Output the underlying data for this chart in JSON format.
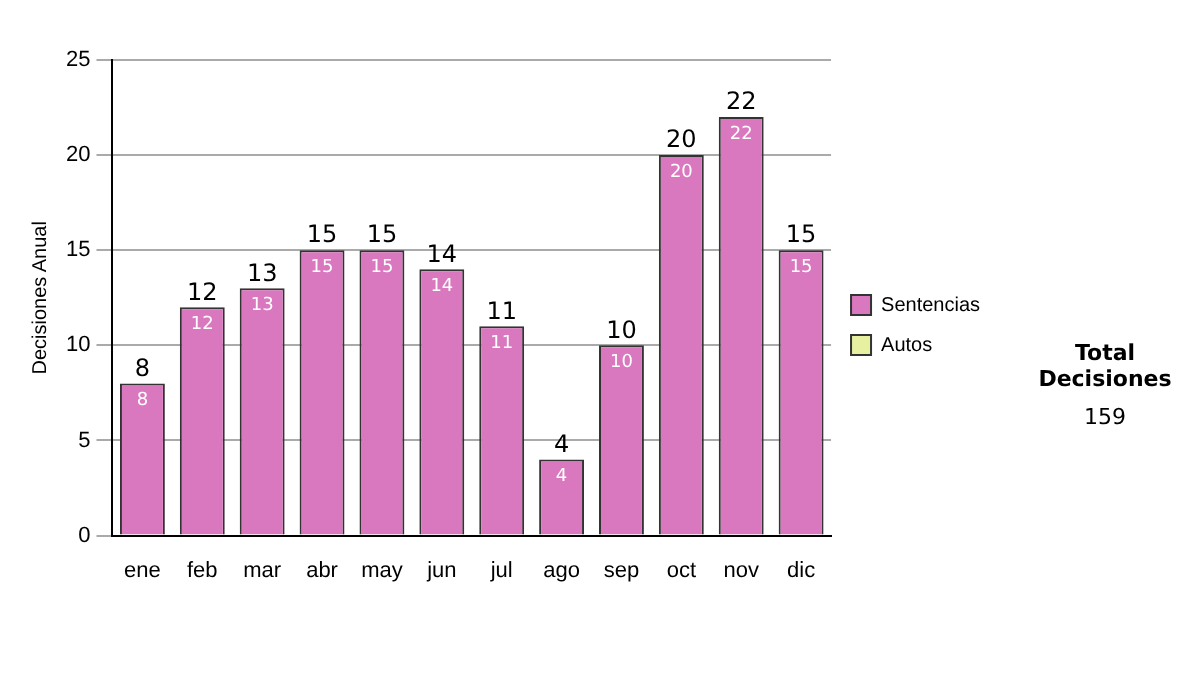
{
  "chart_data": {
    "type": "bar",
    "ylabel": "Decisiones Anual",
    "categories": [
      "ene",
      "feb",
      "mar",
      "abr",
      "may",
      "jun",
      "jul",
      "ago",
      "sep",
      "oct",
      "nov",
      "dic"
    ],
    "series": [
      {
        "name": "Sentencias",
        "color": "#d978bf",
        "values": [
          8,
          12,
          13,
          15,
          15,
          14,
          11,
          4,
          10,
          20,
          22,
          15
        ],
        "value_labels": [
          "8",
          "12",
          "13",
          "15",
          "15",
          "14",
          "11",
          "4",
          "10",
          "20",
          "22",
          "15"
        ]
      },
      {
        "name": "Autos",
        "color": "#e6f0a0",
        "values": [
          0,
          0,
          0,
          0,
          0,
          0,
          0,
          0,
          0,
          0,
          0,
          0
        ]
      }
    ],
    "stacked": true,
    "totals": [
      "8",
      "12",
      "13",
      "15",
      "15",
      "14",
      "11",
      "4",
      "10",
      "20",
      "22",
      "15"
    ],
    "ylim": [
      0,
      25
    ],
    "yticks": [
      0,
      5,
      10,
      15,
      20,
      25
    ],
    "grid": "y",
    "legend": "right",
    "annotations": [
      "Total Decisiones",
      "159"
    ]
  }
}
